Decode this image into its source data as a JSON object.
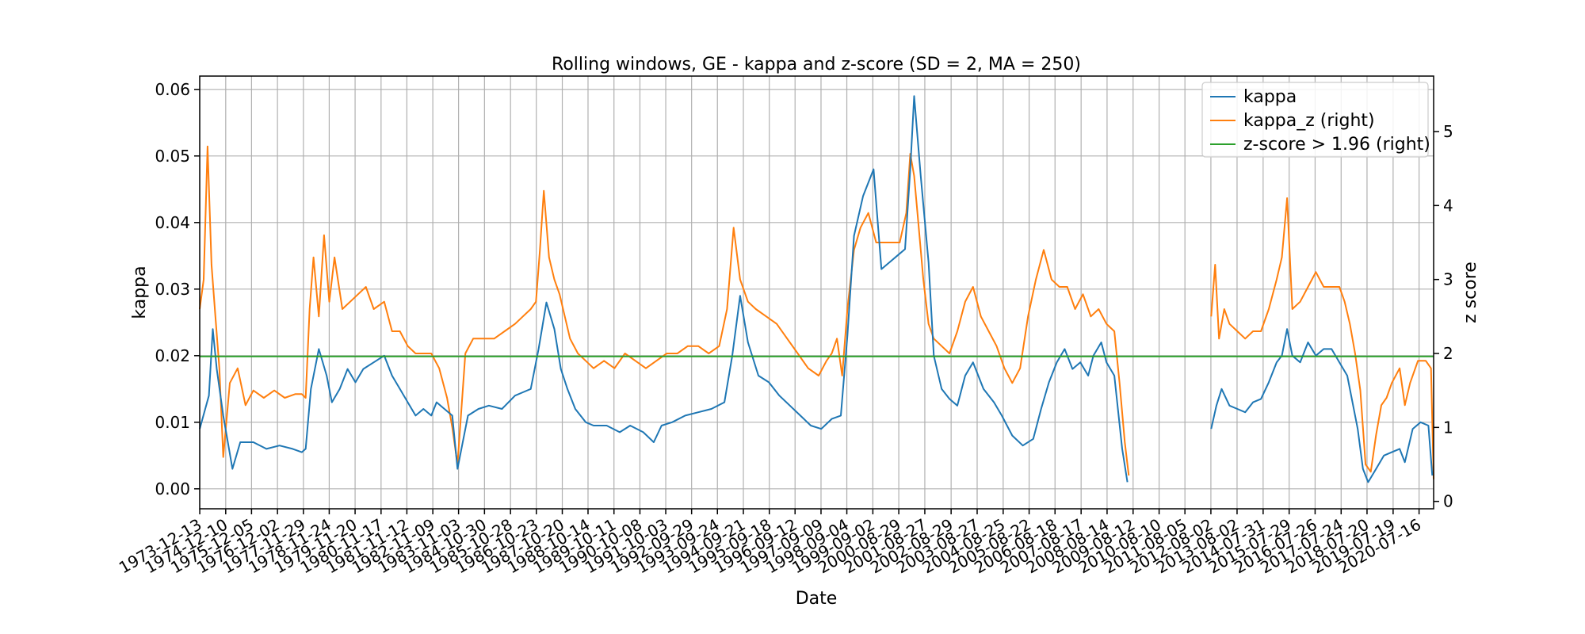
{
  "chart_data": {
    "type": "line",
    "title": "Rolling windows, GE - kappa and z-score (SD = 2, MA = 250)",
    "xlabel": "Date",
    "ylabel": "kappa",
    "ylabel_right": "z score",
    "grid": true,
    "legend_position": "top-right",
    "x_ticks": [
      "1973-12-13",
      "1974-12-10",
      "1975-12-05",
      "1976-12-02",
      "1977-11-29",
      "1978-11-24",
      "1979-11-20",
      "1980-11-17",
      "1981-11-12",
      "1982-11-09",
      "1983-11-03",
      "1984-10-30",
      "1985-10-28",
      "1986-10-23",
      "1987-10-20",
      "1988-10-14",
      "1989-10-11",
      "1990-10-08",
      "1991-10-03",
      "1992-09-29",
      "1993-09-24",
      "1994-09-21",
      "1995-09-18",
      "1996-09-12",
      "1997-09-09",
      "1998-09-04",
      "1999-09-02",
      "2000-08-29",
      "2001-08-27",
      "2002-08-29",
      "2003-08-27",
      "2004-08-25",
      "2005-08-22",
      "2006-08-18",
      "2007-08-17",
      "2008-08-14",
      "2009-08-12",
      "2010-08-10",
      "2011-08-05",
      "2012-08-02",
      "2013-08-02",
      "2014-07-31",
      "2015-07-29",
      "2016-07-26",
      "2017-07-24",
      "2018-07-20",
      "2019-07-19",
      "2020-07-16"
    ],
    "y_ticks_left": [
      "0.00",
      "0.01",
      "0.02",
      "0.03",
      "0.04",
      "0.05",
      "0.06"
    ],
    "y_ticks_right": [
      "0",
      "1",
      "2",
      "3",
      "4",
      "5"
    ],
    "ylim_left": [
      -0.003,
      0.062
    ],
    "ylim_right": [
      -0.1,
      5.75
    ],
    "xlim": [
      1973.95,
      2021.1
    ],
    "threshold": 1.96,
    "series": [
      {
        "name": "kappa",
        "axis": "left",
        "color": "#1f77b4",
        "x": [
          1973.95,
          1974.3,
          1974.45,
          1974.6,
          1974.85,
          1975.2,
          1975.5,
          1976.0,
          1976.5,
          1977.0,
          1977.5,
          1977.85,
          1978.0,
          1978.2,
          1978.5,
          1978.8,
          1979.0,
          1979.3,
          1979.6,
          1979.9,
          1980.2,
          1980.6,
          1981.0,
          1981.3,
          1981.6,
          1981.9,
          1982.2,
          1982.5,
          1982.8,
          1983.0,
          1983.3,
          1983.6,
          1983.8,
          1984.2,
          1984.6,
          1985.0,
          1985.5,
          1986.0,
          1986.3,
          1986.6,
          1986.9,
          1987.2,
          1987.5,
          1987.75,
          1988.0,
          1988.3,
          1988.7,
          1989.0,
          1989.5,
          1990.0,
          1990.4,
          1990.9,
          1991.3,
          1991.6,
          1992.0,
          1992.5,
          1993.0,
          1993.5,
          1994.0,
          1994.3,
          1994.6,
          1994.9,
          1995.3,
          1995.7,
          1996.1,
          1996.5,
          1996.9,
          1997.3,
          1997.7,
          1998.1,
          1998.45,
          1998.7,
          1998.95,
          1999.3,
          1999.7,
          2000.0,
          2000.3,
          2000.6,
          2000.9,
          2001.1,
          2001.25,
          2001.5,
          2001.8,
          2002.0,
          2002.3,
          2002.6,
          2002.9,
          2003.2,
          2003.5,
          2003.9,
          2004.3,
          2004.6,
          2005.0,
          2005.4,
          2005.8,
          2006.1,
          2006.4,
          2006.7,
          2007.0,
          2007.3,
          2007.6,
          2007.9,
          2008.1,
          2008.4,
          2008.6,
          2008.9,
          2009.2,
          2009.4
        ],
        "y": [
          0.009,
          0.014,
          0.024,
          0.018,
          0.011,
          0.003,
          0.007,
          0.007,
          0.006,
          0.0065,
          0.006,
          0.0055,
          0.006,
          0.015,
          0.021,
          0.017,
          0.013,
          0.015,
          0.018,
          0.016,
          0.018,
          0.019,
          0.02,
          0.017,
          0.015,
          0.013,
          0.011,
          0.012,
          0.011,
          0.013,
          0.012,
          0.011,
          0.003,
          0.011,
          0.012,
          0.0125,
          0.012,
          0.014,
          0.0145,
          0.015,
          0.021,
          0.028,
          0.024,
          0.018,
          0.015,
          0.012,
          0.01,
          0.0095,
          0.0095,
          0.0085,
          0.0095,
          0.0085,
          0.007,
          0.0095,
          0.01,
          0.011,
          0.0115,
          0.012,
          0.013,
          0.02,
          0.029,
          0.022,
          0.017,
          0.016,
          0.014,
          0.0125,
          0.011,
          0.0095,
          0.009,
          0.0105,
          0.011,
          0.023,
          0.038,
          0.044,
          0.048,
          0.033,
          0.034,
          0.035,
          0.036,
          0.048,
          0.059,
          0.047,
          0.034,
          0.02,
          0.015,
          0.0135,
          0.0125,
          0.017,
          0.019,
          0.015,
          0.013,
          0.011,
          0.008,
          0.0065,
          0.0075,
          0.012,
          0.016,
          0.019,
          0.021,
          0.018,
          0.019,
          0.017,
          0.02,
          0.022,
          0.019,
          0.017,
          0.006,
          0.001
        ]
      },
      {
        "name": "kappa_z (right)",
        "axis": "right",
        "color": "#ff7f0e",
        "x": [
          1973.95,
          1974.1,
          1974.25,
          1974.4,
          1974.55,
          1974.7,
          1974.85,
          1975.1,
          1975.4,
          1975.7,
          1976.0,
          1976.4,
          1976.8,
          1977.2,
          1977.6,
          1977.85,
          1978.0,
          1978.15,
          1978.3,
          1978.5,
          1978.7,
          1978.9,
          1979.1,
          1979.4,
          1979.7,
          1980.0,
          1980.3,
          1980.6,
          1981.0,
          1981.3,
          1981.6,
          1981.9,
          1982.2,
          1982.5,
          1982.8,
          1983.1,
          1983.4,
          1983.6,
          1983.8,
          1984.1,
          1984.4,
          1984.8,
          1985.2,
          1985.6,
          1986.0,
          1986.3,
          1986.6,
          1986.8,
          1986.95,
          1987.1,
          1987.3,
          1987.5,
          1987.7,
          1987.9,
          1988.1,
          1988.4,
          1988.7,
          1989.0,
          1989.4,
          1989.8,
          1990.2,
          1990.6,
          1991.0,
          1991.4,
          1991.8,
          1992.2,
          1992.6,
          1993.0,
          1993.4,
          1993.8,
          1994.1,
          1994.35,
          1994.6,
          1994.9,
          1995.2,
          1995.6,
          1996.0,
          1996.4,
          1996.8,
          1997.2,
          1997.6,
          1997.9,
          1998.1,
          1998.3,
          1998.5,
          1998.7,
          1998.95,
          1999.2,
          1999.5,
          1999.8,
          2000.1,
          2000.4,
          2000.7,
          2000.95,
          2001.1,
          2001.25,
          2001.4,
          2001.6,
          2001.8,
          2002.0,
          2002.3,
          2002.6,
          2002.9,
          2003.2,
          2003.5,
          2003.8,
          2004.1,
          2004.4,
          2004.7,
          2005.0,
          2005.3,
          2005.6,
          2005.9,
          2006.2,
          2006.5,
          2006.8,
          2007.1,
          2007.4,
          2007.7,
          2008.0,
          2008.3,
          2008.6,
          2008.9,
          2009.1,
          2009.3,
          2009.45
        ],
        "y": [
          2.6,
          3.0,
          4.8,
          3.2,
          2.5,
          1.8,
          0.6,
          1.6,
          1.8,
          1.3,
          1.5,
          1.4,
          1.5,
          1.4,
          1.45,
          1.45,
          1.4,
          2.6,
          3.3,
          2.5,
          3.6,
          2.7,
          3.3,
          2.6,
          2.7,
          2.8,
          2.9,
          2.6,
          2.7,
          2.3,
          2.3,
          2.1,
          2.0,
          2.0,
          2.0,
          1.8,
          1.4,
          1.0,
          0.5,
          2.0,
          2.2,
          2.2,
          2.2,
          2.3,
          2.4,
          2.5,
          2.6,
          2.7,
          3.4,
          4.2,
          3.3,
          3.0,
          2.8,
          2.5,
          2.2,
          2.0,
          1.9,
          1.8,
          1.9,
          1.8,
          2.0,
          1.9,
          1.8,
          1.9,
          2.0,
          2.0,
          2.1,
          2.1,
          2.0,
          2.1,
          2.6,
          3.7,
          3.0,
          2.7,
          2.6,
          2.5,
          2.4,
          2.2,
          2.0,
          1.8,
          1.7,
          1.9,
          2.0,
          2.2,
          1.7,
          2.6,
          3.4,
          3.7,
          3.9,
          3.5,
          3.5,
          3.5,
          3.5,
          3.9,
          4.7,
          4.4,
          3.8,
          3.0,
          2.4,
          2.2,
          2.1,
          2.0,
          2.3,
          2.7,
          2.9,
          2.5,
          2.3,
          2.1,
          1.8,
          1.6,
          1.8,
          2.5,
          3.0,
          3.4,
          3.0,
          2.9,
          2.9,
          2.6,
          2.8,
          2.5,
          2.6,
          2.4,
          2.3,
          1.6,
          0.8,
          0.35
        ]
      },
      {
        "name": "kappa",
        "axis": "left",
        "color": "#1f77b4",
        "x": [
          2012.6,
          2012.8,
          2013.0,
          2013.3,
          2013.6,
          2013.9,
          2014.2,
          2014.5,
          2014.8,
          2015.1,
          2015.3,
          2015.5,
          2015.7,
          2016.0,
          2016.3,
          2016.6,
          2016.9,
          2017.2,
          2017.5,
          2017.8,
          2018.0,
          2018.2,
          2018.4,
          2018.6,
          2018.9,
          2019.2,
          2019.5,
          2019.8,
          2020.0,
          2020.3,
          2020.6,
          2020.9,
          2021.05
        ],
        "y": [
          0.009,
          0.0125,
          0.015,
          0.0125,
          0.012,
          0.0115,
          0.013,
          0.0135,
          0.016,
          0.019,
          0.02,
          0.024,
          0.02,
          0.019,
          0.022,
          0.02,
          0.021,
          0.021,
          0.019,
          0.017,
          0.013,
          0.009,
          0.003,
          0.001,
          0.003,
          0.005,
          0.0055,
          0.006,
          0.004,
          0.009,
          0.01,
          0.0095,
          0.002
        ]
      },
      {
        "name": "kappa_z (right)",
        "axis": "right",
        "color": "#ff7f0e",
        "x": [
          2012.6,
          2012.75,
          2012.9,
          2013.1,
          2013.3,
          2013.6,
          2013.9,
          2014.2,
          2014.5,
          2014.8,
          2015.1,
          2015.3,
          2015.5,
          2015.7,
          2016.0,
          2016.3,
          2016.6,
          2016.9,
          2017.2,
          2017.5,
          2017.7,
          2017.9,
          2018.1,
          2018.3,
          2018.5,
          2018.7,
          2018.9,
          2019.1,
          2019.3,
          2019.5,
          2019.8,
          2020.0,
          2020.2,
          2020.5,
          2020.8,
          2021.0,
          2021.1
        ],
        "y": [
          2.5,
          3.2,
          2.2,
          2.6,
          2.4,
          2.3,
          2.2,
          2.3,
          2.3,
          2.6,
          3.0,
          3.3,
          4.1,
          2.6,
          2.7,
          2.9,
          3.1,
          2.9,
          2.9,
          2.9,
          2.7,
          2.4,
          2.0,
          1.5,
          0.5,
          0.4,
          0.9,
          1.3,
          1.4,
          1.6,
          1.8,
          1.3,
          1.6,
          1.9,
          1.9,
          1.8,
          0.3
        ]
      },
      {
        "name": "z-score > 1.96 (right)",
        "axis": "right",
        "color": "#2ca02c",
        "x": [
          1973.95,
          2021.1
        ],
        "y": [
          1.96,
          1.96
        ]
      }
    ],
    "legend": [
      {
        "label": "kappa",
        "color": "#1f77b4"
      },
      {
        "label": "kappa_z (right)",
        "color": "#ff7f0e"
      },
      {
        "label": "z-score > 1.96 (right)",
        "color": "#2ca02c"
      }
    ]
  }
}
